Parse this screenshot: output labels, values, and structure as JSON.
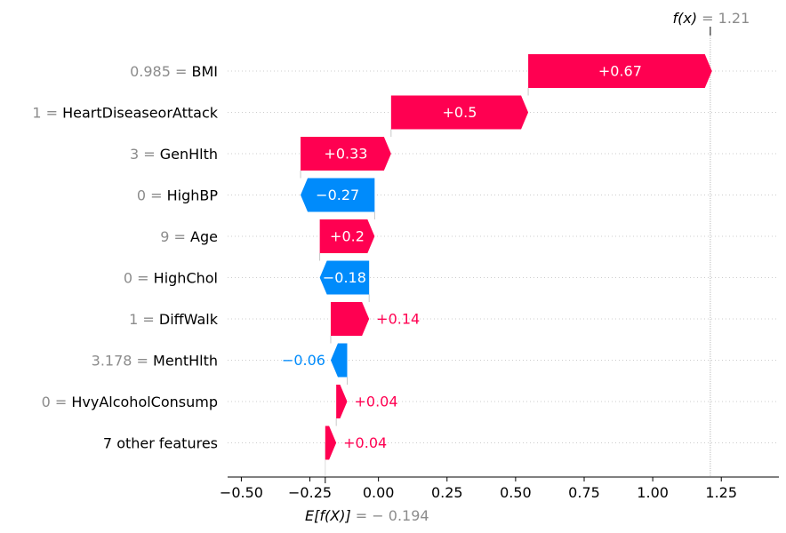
{
  "chart_data": {
    "type": "waterfall",
    "base_value": -0.194,
    "final_value": 1.21,
    "fx_label": {
      "prefix": "f(x)",
      "value": "= 1.21"
    },
    "efx_label": {
      "prefix": "E[f(X)]",
      "value": "= − 0.194"
    },
    "xlim": [
      -0.55,
      1.46
    ],
    "ticks": [
      -0.5,
      -0.25,
      0.0,
      0.25,
      0.5,
      0.75,
      1.0,
      1.25
    ],
    "tick_labels": [
      "−0.50",
      "−0.25",
      "0.00",
      "0.25",
      "0.50",
      "0.75",
      "1.00",
      "1.25"
    ],
    "grid": "dotted horizontal",
    "colors": {
      "positive": "#ff0051",
      "negative": "#008bfb",
      "muted": "#8c8c8c",
      "axis": "#000000"
    },
    "features": [
      {
        "value": "0.985",
        "name": "BMI",
        "contribution": 0.67,
        "label": "+0.67",
        "label_pos": "inside"
      },
      {
        "value": "1",
        "name": "HeartDiseaseorAttack",
        "contribution": 0.5,
        "label": "+0.5",
        "label_pos": "inside"
      },
      {
        "value": "3",
        "name": "GenHlth",
        "contribution": 0.33,
        "label": "+0.33",
        "label_pos": "inside"
      },
      {
        "value": "0",
        "name": "HighBP",
        "contribution": -0.27,
        "label": "−0.27",
        "label_pos": "inside"
      },
      {
        "value": "9",
        "name": "Age",
        "contribution": 0.2,
        "label": "+0.2",
        "label_pos": "inside"
      },
      {
        "value": "0",
        "name": "HighChol",
        "contribution": -0.18,
        "label": "−0.18",
        "label_pos": "inside"
      },
      {
        "value": "1",
        "name": "DiffWalk",
        "contribution": 0.14,
        "label": "+0.14",
        "label_pos": "outside"
      },
      {
        "value": "3.178",
        "name": "MentHlth",
        "contribution": -0.06,
        "label": "−0.06",
        "label_pos": "outside"
      },
      {
        "value": "0",
        "name": "HvyAlcoholConsump",
        "contribution": 0.04,
        "label": "+0.04",
        "label_pos": "outside"
      },
      {
        "value": "",
        "name": "7 other features",
        "contribution": 0.04,
        "label": "+0.04",
        "label_pos": "outside"
      }
    ]
  }
}
